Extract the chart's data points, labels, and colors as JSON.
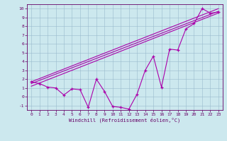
{
  "xlabel": "Windchill (Refroidissement éolien,°C)",
  "bg_color": "#cce8ee",
  "line_color": "#aa00aa",
  "grid_color": "#99bbcc",
  "xlim": [
    -0.5,
    23.5
  ],
  "ylim": [
    -1.5,
    10.5
  ],
  "xticks": [
    0,
    1,
    2,
    3,
    4,
    5,
    6,
    7,
    8,
    9,
    10,
    11,
    12,
    13,
    14,
    15,
    16,
    17,
    18,
    19,
    20,
    21,
    22,
    23
  ],
  "yticks": [
    -1,
    0,
    1,
    2,
    3,
    4,
    5,
    6,
    7,
    8,
    9,
    10
  ],
  "line1_x": [
    0,
    1,
    2,
    3,
    4,
    5,
    6,
    7,
    8,
    9,
    10,
    11,
    12,
    13,
    14,
    15,
    16,
    17,
    18,
    19,
    20,
    21,
    22,
    23
  ],
  "line1_y": [
    1.7,
    1.5,
    1.1,
    1.0,
    0.2,
    0.9,
    0.8,
    -1.2,
    2.0,
    0.6,
    -1.1,
    -1.2,
    -1.4,
    0.3,
    3.0,
    4.6,
    1.1,
    5.4,
    5.3,
    7.7,
    8.3,
    10.0,
    9.5,
    9.6
  ],
  "line2_x": [
    0,
    23
  ],
  "line2_y": [
    1.5,
    9.7
  ],
  "line3_x": [
    0,
    23
  ],
  "line3_y": [
    1.7,
    10.0
  ],
  "line4_x": [
    0,
    23
  ],
  "line4_y": [
    1.2,
    9.5
  ]
}
